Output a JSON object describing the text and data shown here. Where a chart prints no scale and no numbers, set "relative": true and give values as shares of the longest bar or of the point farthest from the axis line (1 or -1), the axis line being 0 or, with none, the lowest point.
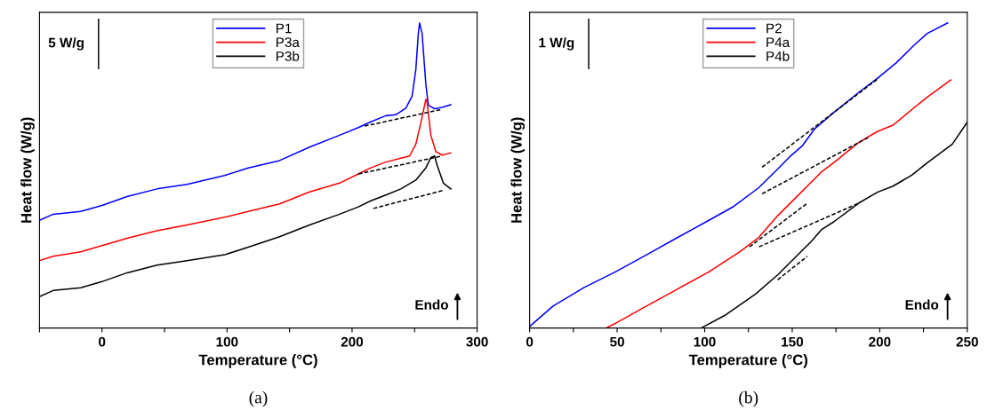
{
  "chart_data": [
    {
      "type": "line",
      "relative": true,
      "xlabel": "Temperature (°C)",
      "ylabel": "Heat flow (W/g)",
      "xlim": [
        -50,
        300
      ],
      "xticks": [
        {
          "value": -50,
          "label": null
        },
        0,
        {
          "value": 50,
          "label": null
        },
        100,
        {
          "value": 150,
          "label": null
        },
        200,
        {
          "value": 250,
          "label": null
        },
        300
      ],
      "tick_labels": "x",
      "legend": "top",
      "grid": false,
      "annotations": [
        "5 W/g",
        "Endo",
        "(a)"
      ],
      "series": [
        {
          "name": "P1",
          "color": "#0000ff",
          "x": [
            -50,
            -39,
            -17,
            0,
            20,
            44,
            68,
            98,
            117,
            142,
            166,
            190,
            205,
            215,
            227,
            235,
            243,
            248,
            251,
            253,
            254,
            256,
            259,
            261,
            266,
            272,
            279
          ],
          "values": [
            0.353,
            0.373,
            0.382,
            0.402,
            0.431,
            0.456,
            0.471,
            0.5,
            0.525,
            0.549,
            0.593,
            0.632,
            0.657,
            0.676,
            0.696,
            0.699,
            0.721,
            0.76,
            0.848,
            0.966,
            1,
            0.966,
            0.799,
            0.73,
            0.719,
            0.723,
            0.732
          ]
        },
        {
          "name": "P3a",
          "color": "#ff0000",
          "x": [
            -50,
            -39,
            -17,
            0,
            20,
            44,
            68,
            98,
            117,
            142,
            166,
            190,
            205,
            215,
            227,
            239,
            246,
            251,
            255,
            259,
            260,
            263,
            267,
            272,
            279
          ],
          "values": [
            0.221,
            0.235,
            0.25,
            0.27,
            0.294,
            0.319,
            0.338,
            0.363,
            0.382,
            0.407,
            0.446,
            0.475,
            0.505,
            0.525,
            0.544,
            0.557,
            0.564,
            0.603,
            0.672,
            0.75,
            0.74,
            0.632,
            0.578,
            0.567,
            0.574
          ]
        },
        {
          "name": "P3b",
          "color": "#000000",
          "x": [
            -50,
            -39,
            -17,
            0,
            20,
            44,
            68,
            98,
            117,
            142,
            166,
            190,
            205,
            215,
            227,
            239,
            251,
            259,
            263,
            266,
            268,
            273,
            279
          ],
          "values": [
            0.103,
            0.123,
            0.132,
            0.152,
            0.181,
            0.206,
            0.221,
            0.24,
            0.265,
            0.299,
            0.338,
            0.373,
            0.397,
            0.417,
            0.436,
            0.456,
            0.485,
            0.525,
            0.559,
            0.564,
            0.534,
            0.475,
            0.456
          ]
        },
        {
          "color": "#000000",
          "line_style": "dashed",
          "x": [
            210,
            271
          ],
          "values": [
            0.662,
            0.716
          ]
        },
        {
          "color": "#000000",
          "line_style": "dashed",
          "x": [
            205,
            272
          ],
          "values": [
            0.505,
            0.564
          ]
        },
        {
          "color": "#000000",
          "line_style": "dashed",
          "x": [
            217,
            273
          ],
          "values": [
            0.392,
            0.451
          ]
        }
      ]
    },
    {
      "type": "line",
      "relative": true,
      "xlabel": "Temperature (°C)",
      "ylabel": "Heat flow (W/g)",
      "xlim": [
        0,
        250
      ],
      "xticks": [
        0,
        {
          "value": 25,
          "label": null
        },
        50,
        {
          "value": 75,
          "label": null
        },
        100,
        {
          "value": 125,
          "label": null
        },
        150,
        {
          "value": 175,
          "label": null
        },
        200,
        {
          "value": 225,
          "label": null
        },
        250
      ],
      "tick_labels": "x",
      "legend": "top",
      "grid": false,
      "annotations": [
        "1 W/g",
        "Endo",
        "(b)"
      ],
      "series": [
        {
          "name": "P2",
          "color": "#0000ff",
          "x": [
            0,
            13.4,
            31.2,
            49,
            66.8,
            84.6,
            102.4,
            116.7,
            130.9,
            141.7,
            148.7,
            155.9,
            163,
            173.7,
            187.9,
            198.6,
            209.4,
            220.1,
            227.2,
            238.8
          ],
          "values": [
            0.005,
            0.072,
            0.133,
            0.184,
            0.24,
            0.297,
            0.353,
            0.399,
            0.46,
            0.521,
            0.562,
            0.598,
            0.654,
            0.706,
            0.772,
            0.818,
            0.869,
            0.93,
            0.966,
            1
          ]
        },
        {
          "name": "P4a",
          "color": "#ff0000",
          "x": [
            43.7,
            49,
            66.8,
            84.6,
            102.4,
            120.3,
            130.9,
            141.7,
            150.6,
            159.5,
            166.6,
            173.7,
            187.9,
            198.6,
            207.6,
            218.3,
            227.2,
            240.6
          ],
          "values": [
            0,
            0.015,
            0.072,
            0.128,
            0.184,
            0.251,
            0.297,
            0.368,
            0.419,
            0.47,
            0.511,
            0.542,
            0.608,
            0.644,
            0.665,
            0.716,
            0.757,
            0.813
          ]
        },
        {
          "name": "P4b",
          "color": "#000000",
          "x": [
            98,
            111.4,
            129.2,
            141.7,
            152.4,
            161.3,
            166.6,
            173.7,
            187.9,
            198.6,
            207.6,
            218.3,
            227.2,
            241.5,
            250
          ],
          "values": [
            0,
            0.041,
            0.112,
            0.174,
            0.235,
            0.286,
            0.322,
            0.348,
            0.409,
            0.445,
            0.465,
            0.501,
            0.542,
            0.603,
            0.675
          ]
        },
        {
          "color": "#000000",
          "line_style": "dashed",
          "x": [
            132.8,
            199.6
          ],
          "values": [
            0.527,
            0.82
          ]
        },
        {
          "color": "#000000",
          "line_style": "dashed",
          "x": [
            132.8,
            193.3
          ],
          "values": [
            0.44,
            0.624
          ]
        },
        {
          "color": "#000000",
          "line_style": "dashed",
          "x": [
            131,
            188
          ],
          "values": [
            0.266,
            0.409
          ]
        },
        {
          "color": "#000000",
          "line_style": "dashed",
          "x": [
            125.6,
            158.6
          ],
          "values": [
            0.266,
            0.409
          ]
        },
        {
          "color": "#000000",
          "line_style": "dashed",
          "x": [
            141.7,
            158.6
          ],
          "values": [
            0.158,
            0.235
          ]
        }
      ]
    }
  ]
}
